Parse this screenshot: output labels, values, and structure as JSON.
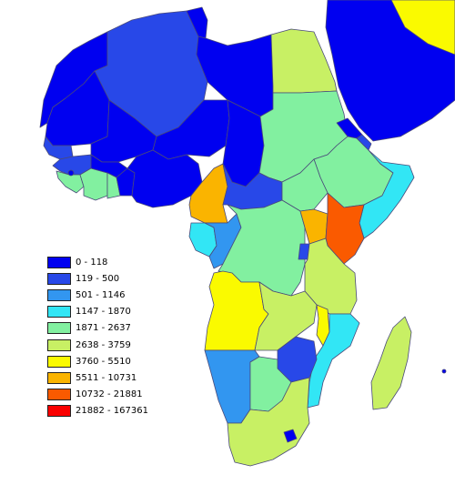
{
  "legend": {
    "items": [
      {
        "label": "0 - 118",
        "color": "#0000f0"
      },
      {
        "label": "119 - 500",
        "color": "#2848e8"
      },
      {
        "label": "501 - 1146",
        "color": "#3296f0"
      },
      {
        "label": "1147 - 1870",
        "color": "#32e6f5"
      },
      {
        "label": "1871 - 2637",
        "color": "#82f0a0"
      },
      {
        "label": "2638 - 3759",
        "color": "#c8f064"
      },
      {
        "label": "3760 - 5510",
        "color": "#fafa00"
      },
      {
        "label": "5511 - 10731",
        "color": "#fab400"
      },
      {
        "label": "10732 - 21881",
        "color": "#fa5a00"
      },
      {
        "label": "21882 - 167361",
        "color": "#fa0000"
      }
    ]
  },
  "colors": {
    "ocean": "#ffffff",
    "border": "#4a4a7a",
    "class_0_118": "#0000f0",
    "class_119_500": "#2848e8",
    "class_501_1146": "#3296f0",
    "class_1147_1870": "#32e6f5",
    "class_1871_2637": "#82f0a0",
    "class_2638_3759": "#c8f064",
    "class_3760_5510": "#fafa00",
    "class_5511_10731": "#fab400",
    "class_10732_21881": "#fa5a00"
  }
}
